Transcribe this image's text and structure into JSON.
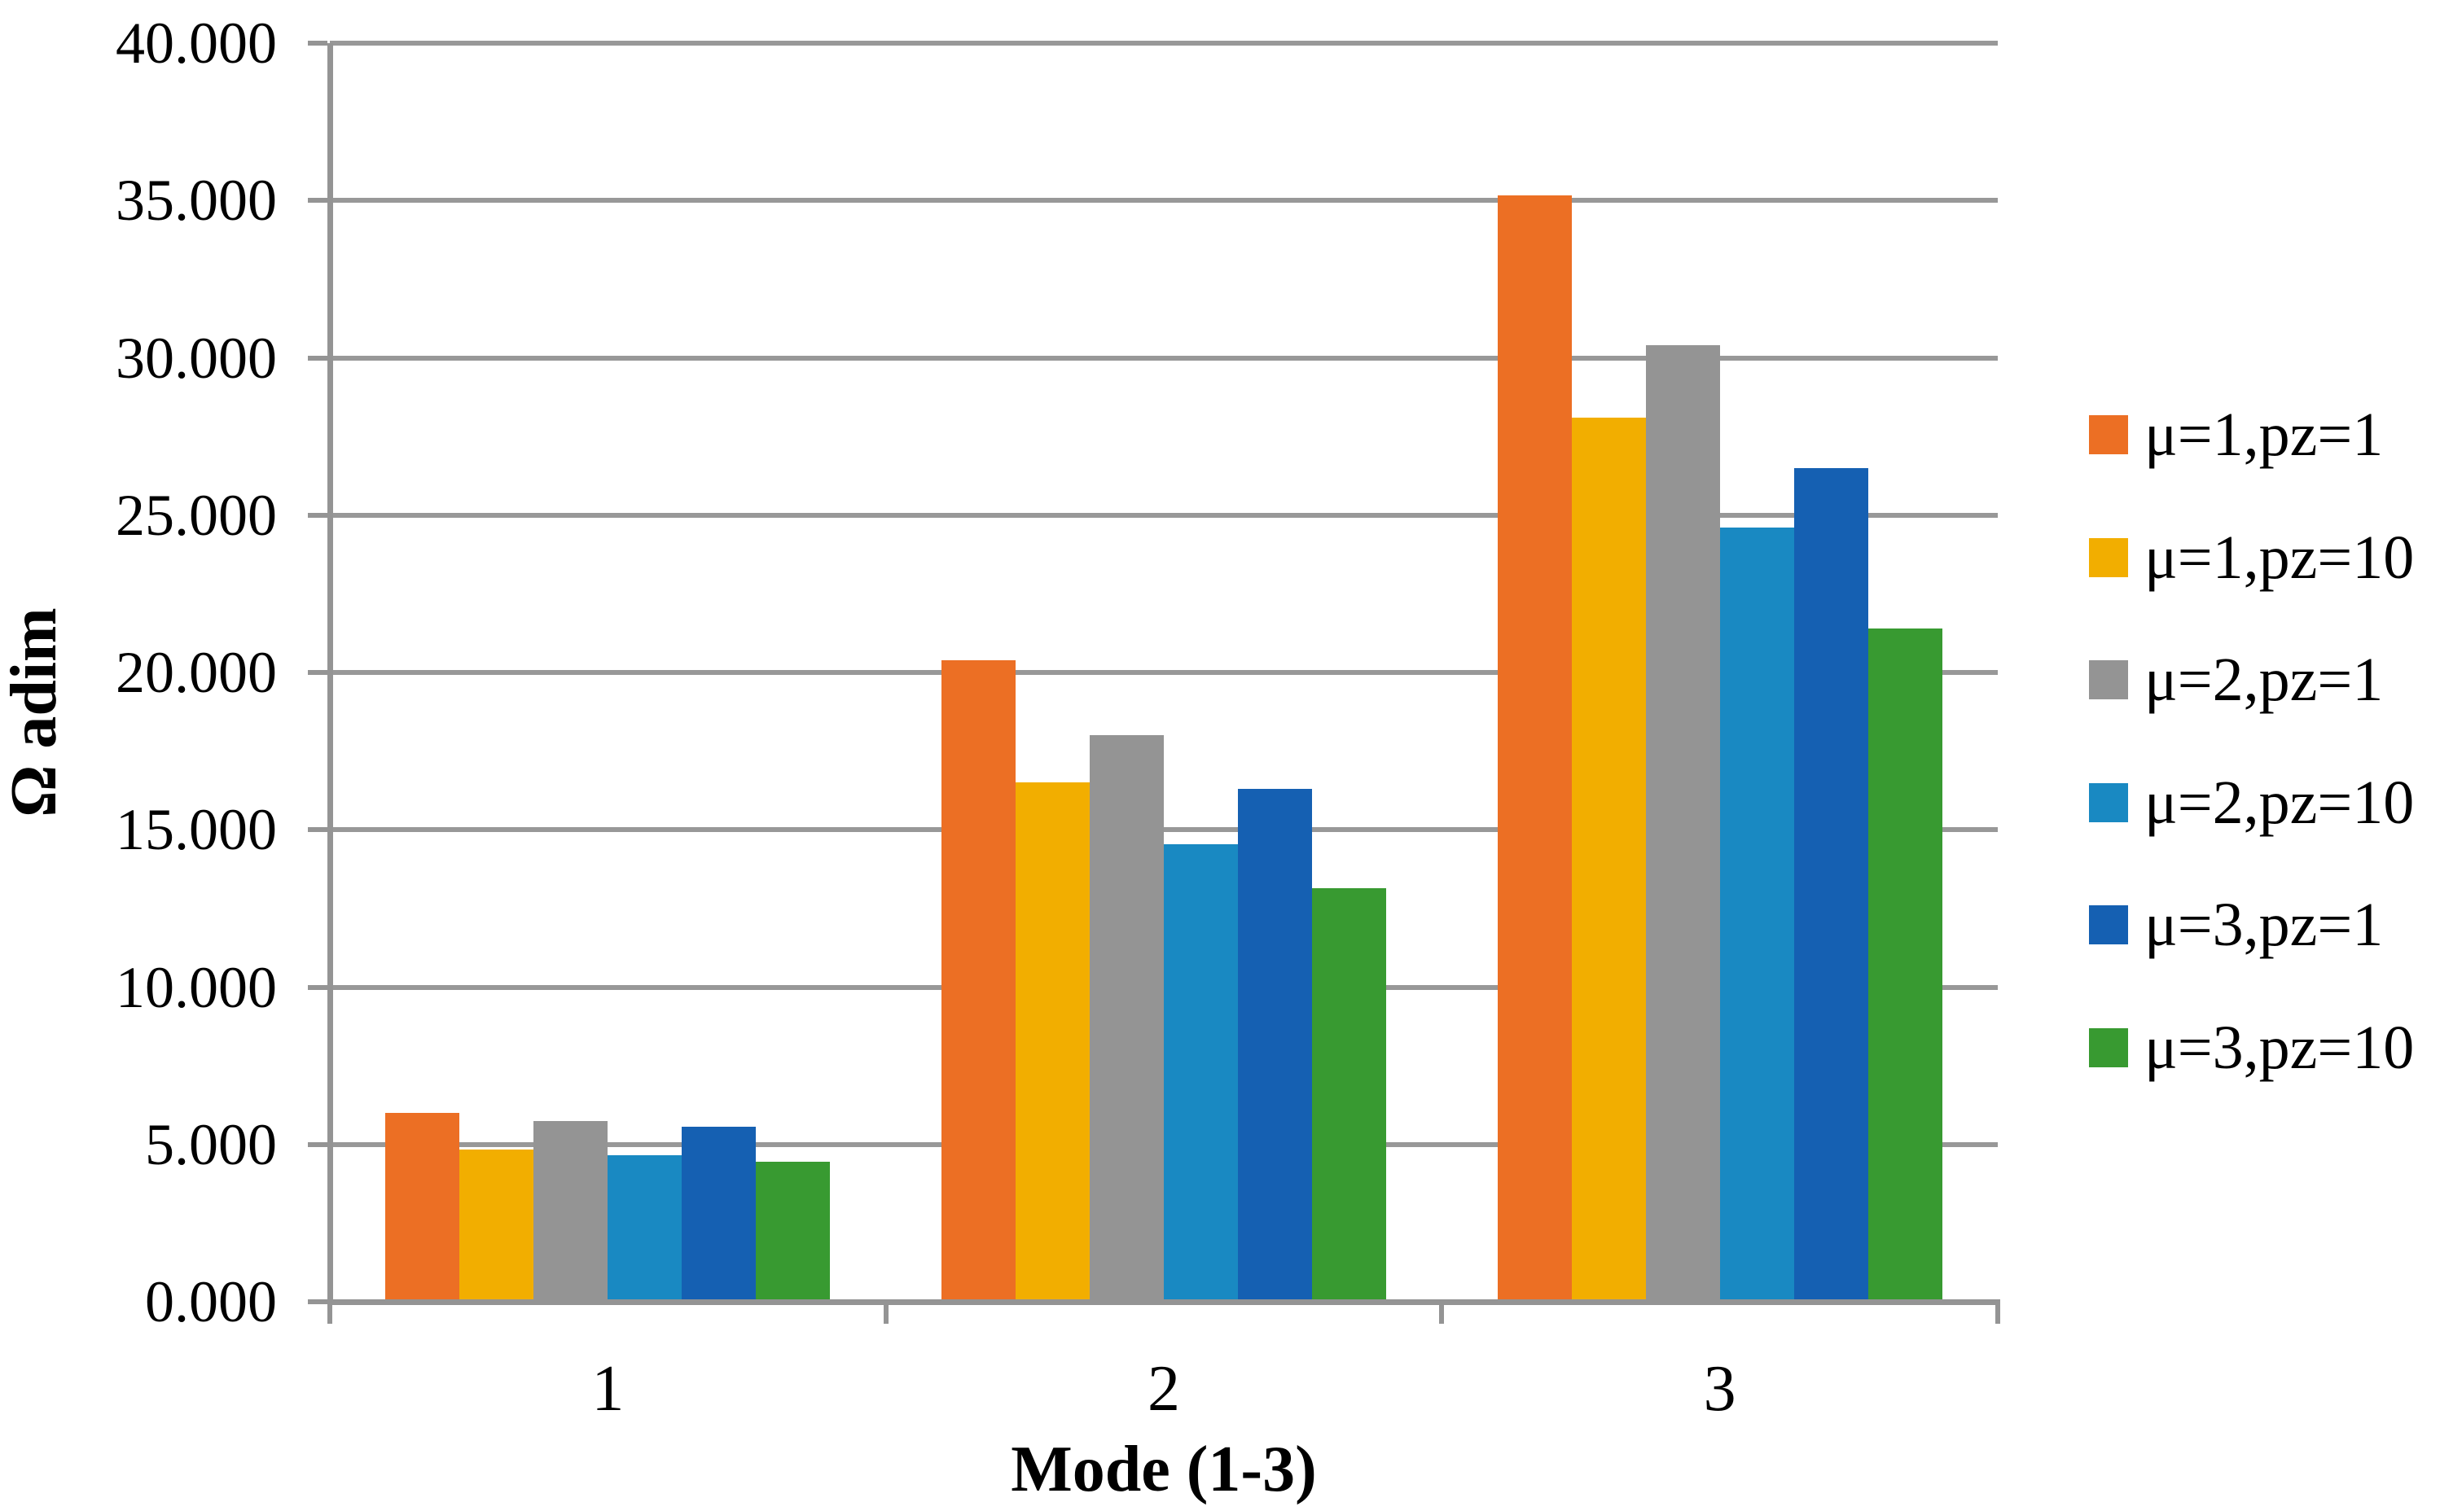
{
  "chart_data": {
    "type": "bar",
    "title": "",
    "xlabel": "Mode (1-3)",
    "ylabel": "Ω adim",
    "categories": [
      "1",
      "2",
      "3"
    ],
    "series": [
      {
        "name": "μ=1,pz=1",
        "color": "#EC6F24",
        "values": [
          6.0,
          20.4,
          35.15
        ]
      },
      {
        "name": "μ=1,pz=10",
        "color": "#F2AE00",
        "values": [
          4.85,
          16.5,
          28.1
        ]
      },
      {
        "name": "μ=2,pz=1",
        "color": "#949494",
        "values": [
          5.75,
          18.0,
          30.4
        ]
      },
      {
        "name": "μ=2,pz=10",
        "color": "#1989C2",
        "values": [
          4.65,
          14.55,
          24.6
        ]
      },
      {
        "name": "μ=3,pz=1",
        "color": "#1560B2",
        "values": [
          5.55,
          16.3,
          26.5
        ]
      },
      {
        "name": "μ=3,pz=10",
        "color": "#389A31",
        "values": [
          4.45,
          13.15,
          21.4
        ]
      }
    ],
    "y_ticks": [
      "40.000",
      "35.000",
      "30.000",
      "25.000",
      "20.000",
      "15.000",
      "10.000",
      "5.000",
      "0.000"
    ],
    "ylim": [
      0,
      40
    ],
    "y_tick_step": 5,
    "grid": true,
    "legend_position": "right",
    "gap_width_percent": 150,
    "colors": {
      "axis": "#949494",
      "gridline": "#989898",
      "text": "#000000",
      "background": "#FFFFFF"
    }
  }
}
